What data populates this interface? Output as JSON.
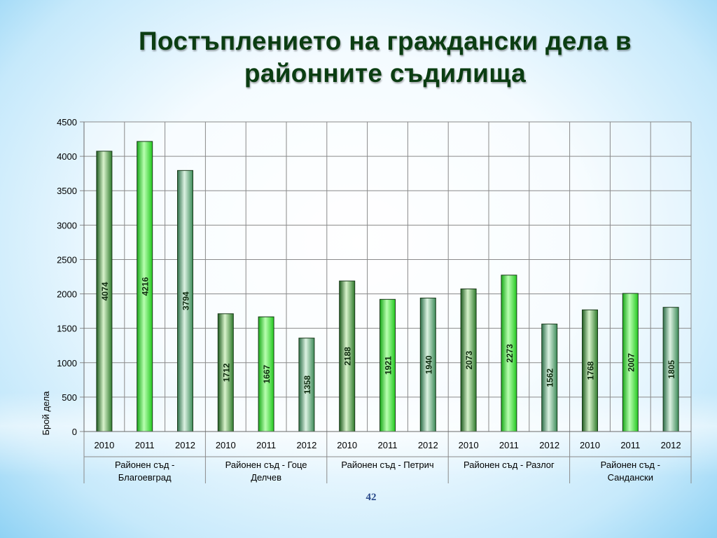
{
  "title_lines": [
    "Постъплението на граждански дела в",
    "районните съдилища"
  ],
  "page_number": "42",
  "chart_data": {
    "type": "bar",
    "ylabel": "Брой дела",
    "ylim": [
      0,
      4500
    ],
    "yticks": [
      0,
      500,
      1000,
      1500,
      2000,
      2500,
      3000,
      3500,
      4000,
      4500
    ],
    "grid": true,
    "groups": [
      {
        "name": "Районен съд - Благоевград",
        "name_lines": [
          "Районен съд -",
          "Благоевград"
        ],
        "years": [
          "2010",
          "2011",
          "2012"
        ],
        "values": [
          4074,
          4216,
          3794
        ]
      },
      {
        "name": "Районен съд - Гоце Делчев",
        "name_lines": [
          "Районен съд - Гоце",
          "Делчев"
        ],
        "years": [
          "2010",
          "2011",
          "2012"
        ],
        "values": [
          1712,
          1667,
          1358
        ]
      },
      {
        "name": "Районен съд - Петрич",
        "name_lines": [
          "Районен съд - Петрич"
        ],
        "years": [
          "2010",
          "2011",
          "2012"
        ],
        "values": [
          2188,
          1921,
          1940
        ]
      },
      {
        "name": "Районен съд - Разлог",
        "name_lines": [
          "Районен съд - Разлог"
        ],
        "years": [
          "2010",
          "2011",
          "2012"
        ],
        "values": [
          2073,
          2273,
          1562
        ]
      },
      {
        "name": "Районен съд - Сандански",
        "name_lines": [
          "Районен съд -",
          "Сандански"
        ],
        "years": [
          "2010",
          "2011",
          "2012"
        ],
        "values": [
          1768,
          2007,
          1805
        ]
      }
    ],
    "bar_colors": {
      "2010": "#3f9a3a",
      "2011": "#3ee83a",
      "2012": "#5fae78"
    }
  }
}
